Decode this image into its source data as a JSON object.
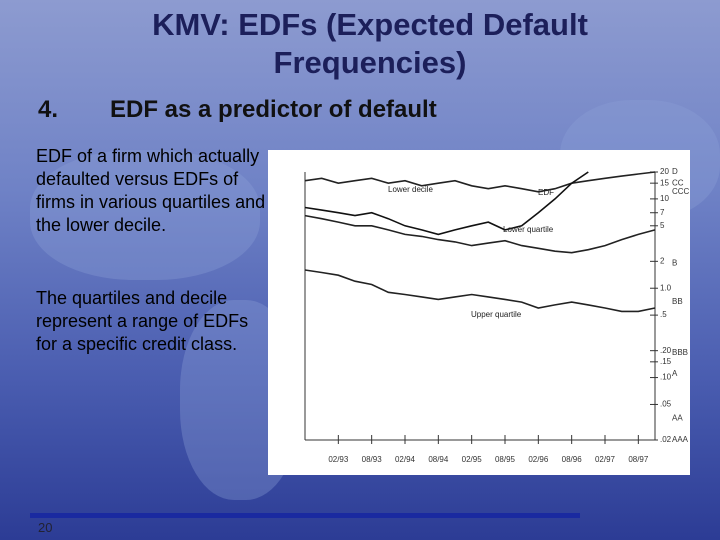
{
  "slide": {
    "title": "KMV: EDFs (Expected Default Frequencies)",
    "heading_number": "4.",
    "heading": "EDF as a predictor of default",
    "paragraphs": [
      "EDF of a firm which actually defaulted versus EDFs of firms in various quartiles and the lower decile.",
      "The quartiles and decile represent a range of EDFs for a specific credit class."
    ],
    "page_number": "20"
  },
  "chart_data": {
    "type": "line",
    "x": [
      "1992-08",
      "1992-11",
      "1993-02",
      "1993-05",
      "1993-08",
      "1993-11",
      "1994-02",
      "1994-05",
      "1994-08",
      "1994-11",
      "1995-02",
      "1995-05",
      "1995-08",
      "1995-11",
      "1996-02",
      "1996-05",
      "1996-08",
      "1996-11",
      "1997-02",
      "1997-05",
      "1997-08",
      "1997-11"
    ],
    "xlim": [
      "1992-08",
      "1997-11"
    ],
    "xticks": [
      {
        "value": "1993-02",
        "label": "02/93"
      },
      {
        "value": "1993-08",
        "label": "08/93"
      },
      {
        "value": "1994-02",
        "label": "02/94"
      },
      {
        "value": "1994-08",
        "label": "08/94"
      },
      {
        "value": "1995-02",
        "label": "02/95"
      },
      {
        "value": "1995-08",
        "label": "08/95"
      },
      {
        "value": "1996-02",
        "label": "02/96"
      },
      {
        "value": "1996-08",
        "label": "08/96"
      },
      {
        "value": "1997-02",
        "label": "02/97"
      },
      {
        "value": "1997-08",
        "label": "08/97"
      }
    ],
    "ylim": [
      0.02,
      20
    ],
    "log_scale_y": true,
    "yticks": [
      20,
      15,
      10,
      7,
      5,
      2,
      {
        "value": 1,
        "label": "1.0"
      },
      {
        "value": 0.5,
        "label": ".5"
      },
      {
        "value": 0.2,
        "label": ".20"
      },
      {
        "value": 0.15,
        "label": ".15"
      },
      {
        "value": 0.1,
        "label": ".10"
      },
      {
        "value": 0.05,
        "label": ".05"
      },
      {
        "value": 0.02,
        "label": ".02"
      }
    ],
    "rating_ticks": [
      {
        "value": 20,
        "label": "D"
      },
      {
        "value": 15,
        "label": "CC"
      },
      {
        "value": 12,
        "label": "CCC"
      },
      {
        "value": 1.9,
        "label": "B"
      },
      {
        "value": 0.7,
        "label": "BB"
      },
      {
        "value": 0.19,
        "label": "BBB"
      },
      {
        "value": 0.11,
        "label": "A"
      },
      {
        "value": 0.035,
        "label": "AA"
      },
      {
        "value": 0.02,
        "label": "AAA"
      }
    ],
    "series": [
      {
        "name": "Lower decile",
        "color": "#222222",
        "values": [
          16,
          17,
          15,
          16,
          17,
          15,
          16,
          14,
          15,
          16,
          14,
          13,
          14,
          13,
          12,
          13,
          15,
          16,
          17,
          18,
          19,
          20
        ]
      },
      {
        "name": "EDF",
        "color": "#111111",
        "values": [
          8,
          7.5,
          7,
          6.5,
          7,
          6,
          5,
          4.5,
          4,
          4.5,
          5,
          5.5,
          4.5,
          5,
          7,
          10,
          15,
          20,
          null,
          null,
          null,
          null
        ]
      },
      {
        "name": "Lower quartile",
        "color": "#222222",
        "values": [
          6.5,
          6,
          5.5,
          5,
          5,
          4.5,
          4,
          3.8,
          3.5,
          3.3,
          3,
          3.2,
          3.4,
          3,
          2.8,
          2.6,
          2.5,
          2.7,
          3,
          3.5,
          4,
          4.5
        ]
      },
      {
        "name": "Upper quartile",
        "color": "#222222",
        "values": [
          1.6,
          1.5,
          1.4,
          1.2,
          1.1,
          0.9,
          0.85,
          0.8,
          0.75,
          0.8,
          0.85,
          0.8,
          0.75,
          0.7,
          0.6,
          0.65,
          0.7,
          0.65,
          0.6,
          0.55,
          0.55,
          0.6
        ]
      }
    ]
  }
}
